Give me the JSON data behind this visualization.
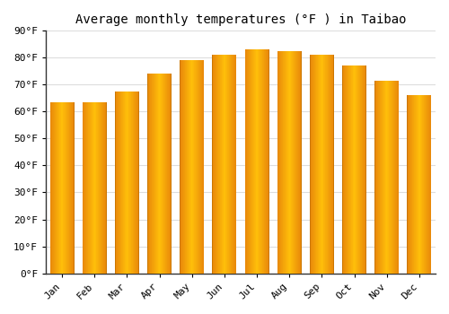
{
  "title": "Average monthly temperatures (°F ) in Taibao",
  "months": [
    "Jan",
    "Feb",
    "Mar",
    "Apr",
    "May",
    "Jun",
    "Jul",
    "Aug",
    "Sep",
    "Oct",
    "Nov",
    "Dec"
  ],
  "values": [
    63.5,
    63.5,
    67.5,
    74.0,
    79.0,
    81.0,
    83.0,
    82.5,
    81.0,
    77.0,
    71.5,
    66.0
  ],
  "bar_color_left": "#E8860A",
  "bar_color_mid": "#FFB733",
  "bar_color_right": "#F09010",
  "background_color": "#FFFFFF",
  "plot_bg_color": "#FFFFFF",
  "grid_color": "#DDDDDD",
  "spine_color": "#333333",
  "ylim": [
    0,
    90
  ],
  "yticks": [
    0,
    10,
    20,
    30,
    40,
    50,
    60,
    70,
    80,
    90
  ],
  "title_fontsize": 10,
  "tick_fontsize": 8,
  "bar_width": 0.75
}
